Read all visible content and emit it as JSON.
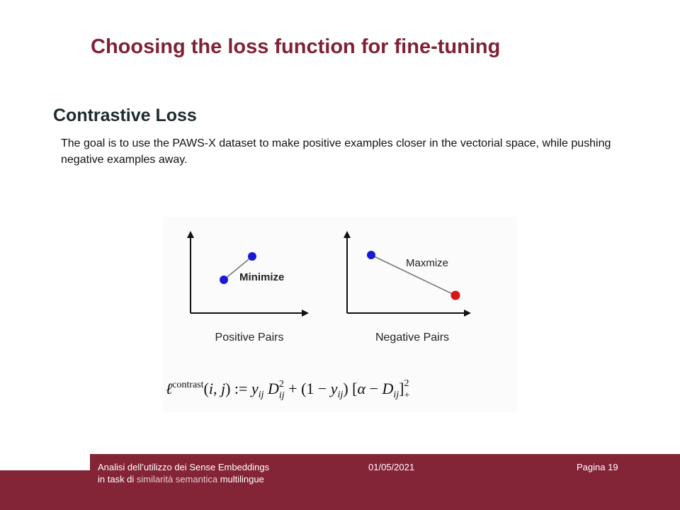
{
  "slide": {
    "title": "Choosing the loss function for fine-tuning",
    "heading": "Contrastive Loss",
    "body": "The goal is to use the PAWS-X dataset to make positive examples closer in the vectorial space, while pushing negative examples away."
  },
  "figure": {
    "positive_label": "Positive Pairs",
    "positive_annotation": "Minimize",
    "negative_label": "Negative Pairs",
    "negative_annotation": "Maxmize",
    "formula_text": "ℓcontrast(i, j) := yij D²ij + (1 − yij) [α − Dij]²+",
    "colors": {
      "point_blue": "#1a1ad6",
      "point_red": "#d81616",
      "axis": "#111111"
    }
  },
  "footer": {
    "line1": "Analisi dell’utilizzo dei Sense Embeddings",
    "line2_a": "in task di ",
    "line2_b": "similarità semantica",
    "line2_c": " multilingue",
    "date": "01/05/2021",
    "page": "Pagina 19",
    "color": "#842437"
  }
}
